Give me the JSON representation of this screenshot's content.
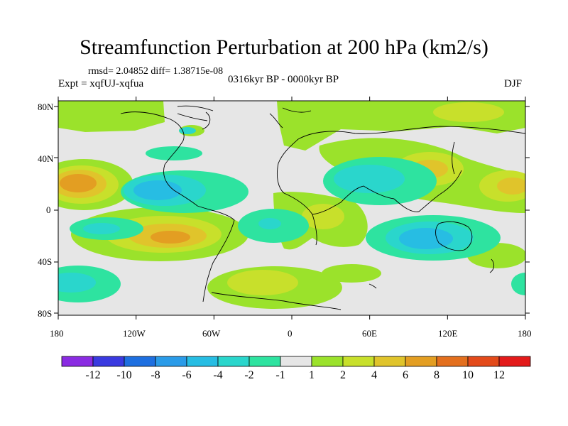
{
  "title": "Streamfunction Perturbation at 200 hPa (km2/s)",
  "stats_line": "rmsd= 2.04852 diff= 1.38715e-08",
  "experiment_line": "Expt = xqfUJ-xqfua",
  "period_line": "0316kyr BP - 0000kyr BP",
  "season": "DJF",
  "lat_ticks": [
    "80N",
    "40N",
    "0",
    "40S",
    "80S"
  ],
  "lon_ticks": [
    "180",
    "120W",
    "60W",
    "0",
    "60E",
    "120E",
    "180"
  ],
  "colorbar": {
    "labels": [
      "-12",
      "-10",
      "-8",
      "-6",
      "-4",
      "-2",
      "-1",
      "1",
      "2",
      "4",
      "6",
      "8",
      "10",
      "12"
    ],
    "colors": [
      "#8a2be2",
      "#3a3ae0",
      "#1e6fe0",
      "#2a9be8",
      "#27bde3",
      "#2ad6cc",
      "#2ee3a0",
      "#e6e6e6",
      "#9be22b",
      "#c8e02b",
      "#e0c42b",
      "#e39e22",
      "#e36f1e",
      "#e34a1a",
      "#e31a1a"
    ]
  }
}
